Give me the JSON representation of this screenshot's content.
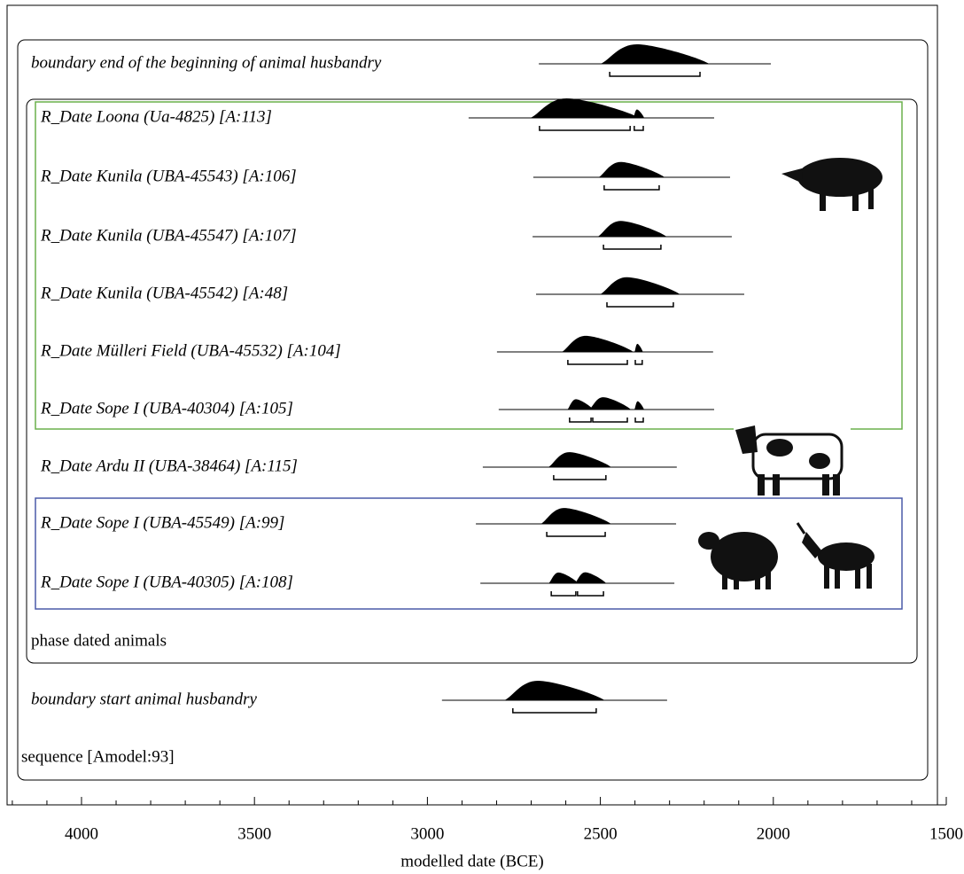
{
  "chart_data": {
    "type": "oxcal",
    "xlabel": "modelled date (BCE)",
    "xlim": [
      4210,
      1500
    ],
    "xticks": [
      4000,
      3500,
      3000,
      2500,
      2000,
      1500
    ],
    "xminorticks": [
      4200,
      4100,
      3900,
      3800,
      3700,
      3600,
      3400,
      3300,
      3200,
      3100,
      2900,
      2800,
      2700,
      2600,
      2400,
      2300,
      2200,
      2100,
      1900,
      1800,
      1700,
      1600
    ],
    "rows": [
      {
        "label": "boundary end of the beginning of animal husbandry",
        "ranges": [
          [
            2473,
            2212
          ]
        ]
      },
      {
        "label": "R_Date Loona (Ua-4825) [A:113]",
        "ranges": [
          [
            2676,
            2414
          ],
          [
            2402,
            2376
          ]
        ]
      },
      {
        "label": "R_Date Kunila (UBA-45543) [A:106]",
        "ranges": [
          [
            2489,
            2330
          ]
        ]
      },
      {
        "label": "R_Date Kunila (UBA-45547) [A:107]",
        "ranges": [
          [
            2491,
            2325
          ]
        ]
      },
      {
        "label": "R_Date Kunila (UBA-45542) [A:48]",
        "ranges": [
          [
            2481,
            2289
          ]
        ]
      },
      {
        "label": "R_Date Mülleri Field (UBA-45532) [A:104]",
        "ranges": [
          [
            2594,
            2422
          ],
          [
            2399,
            2379
          ]
        ]
      },
      {
        "label": "R_Date Sope I (UBA-40304) [A:105]",
        "ranges": [
          [
            2589,
            2527
          ],
          [
            2522,
            2422
          ],
          [
            2399,
            2376
          ]
        ]
      },
      {
        "label": "R_Date Ardu II (UBA-38464) [A:115]",
        "ranges": [
          [
            2635,
            2484
          ]
        ]
      },
      {
        "label": "R_Date Sope I (UBA-45549) [A:99]",
        "ranges": [
          [
            2655,
            2486
          ]
        ]
      },
      {
        "label": "R_Date Sope I (UBA-40305) [A:108]",
        "ranges": [
          [
            2642,
            2571
          ],
          [
            2566,
            2491
          ]
        ]
      },
      {
        "label": "boundary start animal husbandry",
        "ranges": [
          [
            2753,
            2512
          ]
        ]
      }
    ],
    "phase_label": "phase dated animals",
    "sequence_label": "sequence [Amodel:93]"
  }
}
